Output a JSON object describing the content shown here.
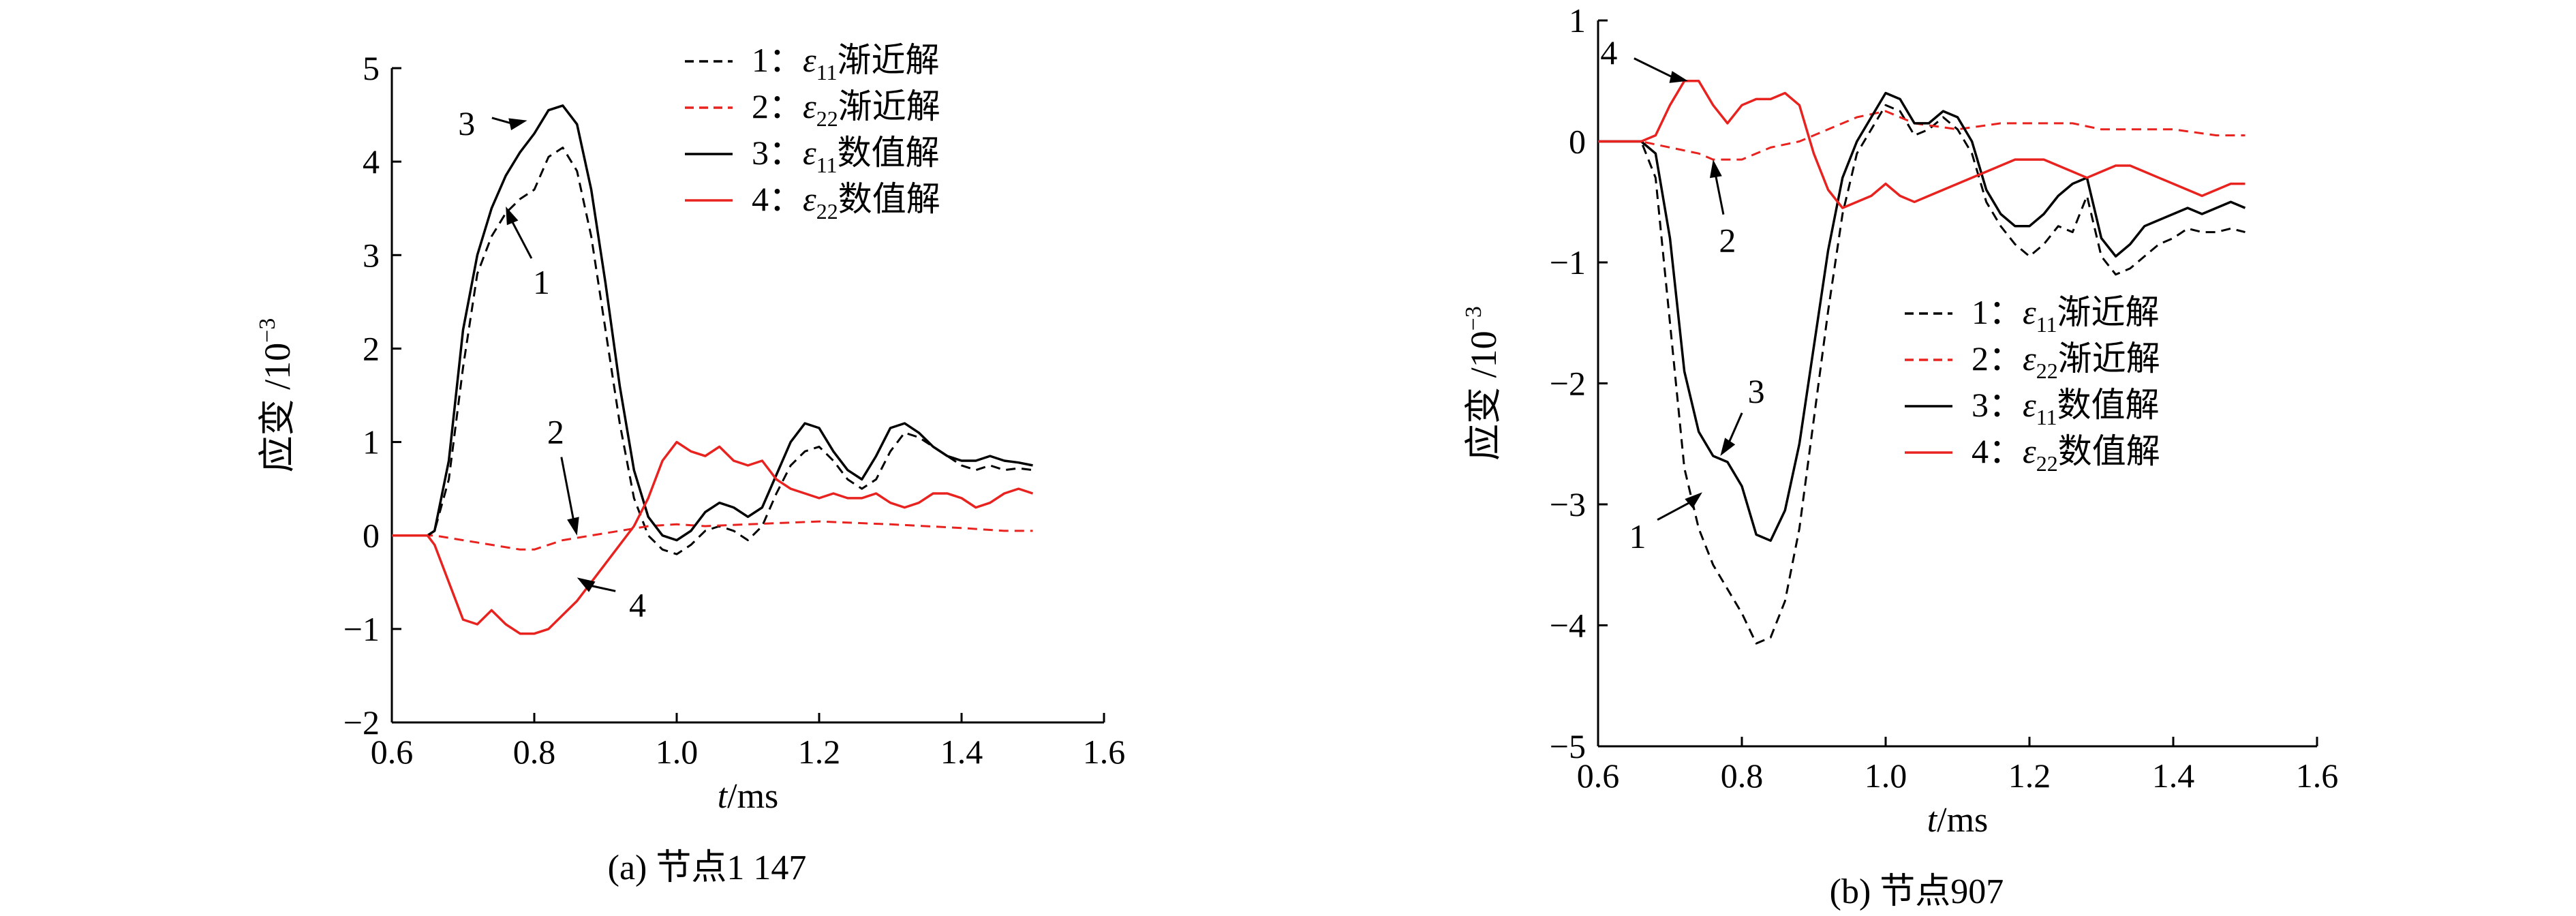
{
  "chart_data": [
    {
      "panel_label": "(a) 节点1 147",
      "type": "line",
      "xlabel_var": "t",
      "xlabel_unit": "/ms",
      "ylabel_main": "应变 /10",
      "ylabel_exp": "−3",
      "xlim": [
        0.6,
        1.6
      ],
      "ylim": [
        -2,
        5
      ],
      "xticks": [
        0.6,
        0.8,
        1.0,
        1.2,
        1.4,
        1.6
      ],
      "xtick_labels": [
        "0.6",
        "0.8",
        "1.0",
        "1.2",
        "1.4",
        "1.6"
      ],
      "yticks": [
        -2,
        -1,
        0,
        1,
        2,
        3,
        4,
        5
      ],
      "ytick_labels": [
        "−2",
        "−1",
        "0",
        "1",
        "2",
        "3",
        "4",
        "5"
      ],
      "legend": [
        {
          "num": "1：",
          "sym": "ε",
          "sub": "11",
          "text": "渐近解",
          "color": "#000000",
          "dash": true
        },
        {
          "num": "2：",
          "sym": "ε",
          "sub": "22",
          "text": "渐近解",
          "color": "#e8231f",
          "dash": true
        },
        {
          "num": "3：",
          "sym": "ε",
          "sub": "11",
          "text": "数值解",
          "color": "#000000",
          "dash": false
        },
        {
          "num": "4：",
          "sym": "ε",
          "sub": "22",
          "text": "数值解",
          "color": "#e8231f",
          "dash": false
        }
      ],
      "series": [
        {
          "color": "#000000",
          "dash": true,
          "x": [
            0.6,
            0.65,
            0.66,
            0.68,
            0.7,
            0.72,
            0.74,
            0.76,
            0.78,
            0.8,
            0.82,
            0.84,
            0.86,
            0.88,
            0.9,
            0.92,
            0.94,
            0.96,
            0.98,
            1.0,
            1.02,
            1.04,
            1.06,
            1.08,
            1.1,
            1.12,
            1.14,
            1.16,
            1.18,
            1.2,
            1.22,
            1.24,
            1.26,
            1.28,
            1.3,
            1.32,
            1.34,
            1.36,
            1.38,
            1.4,
            1.42,
            1.44,
            1.46,
            1.48,
            1.5
          ],
          "y": [
            0,
            0,
            0.05,
            0.6,
            1.8,
            2.8,
            3.2,
            3.45,
            3.6,
            3.7,
            4.05,
            4.15,
            3.9,
            3.2,
            2.2,
            1.2,
            0.4,
            0.0,
            -0.15,
            -0.2,
            -0.1,
            0.05,
            0.1,
            0.05,
            -0.05,
            0.1,
            0.45,
            0.75,
            0.9,
            0.95,
            0.8,
            0.6,
            0.5,
            0.6,
            0.9,
            1.1,
            1.05,
            0.95,
            0.85,
            0.75,
            0.7,
            0.75,
            0.7,
            0.72,
            0.7
          ]
        },
        {
          "color": "#e8231f",
          "dash": true,
          "x": [
            0.6,
            0.66,
            0.7,
            0.74,
            0.78,
            0.8,
            0.84,
            0.88,
            0.92,
            0.96,
            1.0,
            1.04,
            1.1,
            1.2,
            1.3,
            1.4,
            1.46,
            1.5
          ],
          "y": [
            0,
            0,
            -0.05,
            -0.1,
            -0.15,
            -0.15,
            -0.05,
            0.0,
            0.05,
            0.1,
            0.12,
            0.1,
            0.12,
            0.15,
            0.12,
            0.08,
            0.05,
            0.05
          ]
        },
        {
          "color": "#000000",
          "dash": false,
          "x": [
            0.6,
            0.65,
            0.66,
            0.68,
            0.7,
            0.72,
            0.74,
            0.76,
            0.78,
            0.8,
            0.82,
            0.84,
            0.86,
            0.88,
            0.9,
            0.92,
            0.94,
            0.96,
            0.98,
            1.0,
            1.02,
            1.04,
            1.06,
            1.08,
            1.1,
            1.12,
            1.14,
            1.16,
            1.18,
            1.2,
            1.22,
            1.24,
            1.26,
            1.28,
            1.3,
            1.32,
            1.34,
            1.36,
            1.38,
            1.4,
            1.42,
            1.44,
            1.46,
            1.48,
            1.5
          ],
          "y": [
            0,
            0,
            0.05,
            0.8,
            2.2,
            3.0,
            3.5,
            3.85,
            4.1,
            4.3,
            4.55,
            4.6,
            4.4,
            3.7,
            2.7,
            1.6,
            0.7,
            0.2,
            0.0,
            -0.05,
            0.05,
            0.25,
            0.35,
            0.3,
            0.2,
            0.3,
            0.65,
            1.0,
            1.2,
            1.15,
            0.9,
            0.7,
            0.6,
            0.85,
            1.15,
            1.2,
            1.1,
            0.95,
            0.85,
            0.8,
            0.8,
            0.85,
            0.8,
            0.78,
            0.75
          ]
        },
        {
          "color": "#e8231f",
          "dash": false,
          "x": [
            0.6,
            0.65,
            0.66,
            0.68,
            0.7,
            0.72,
            0.74,
            0.76,
            0.78,
            0.8,
            0.82,
            0.84,
            0.86,
            0.88,
            0.9,
            0.92,
            0.94,
            0.96,
            0.98,
            1.0,
            1.02,
            1.04,
            1.06,
            1.08,
            1.1,
            1.12,
            1.14,
            1.16,
            1.18,
            1.2,
            1.22,
            1.24,
            1.26,
            1.28,
            1.3,
            1.32,
            1.34,
            1.36,
            1.38,
            1.4,
            1.42,
            1.44,
            1.46,
            1.48,
            1.5
          ],
          "y": [
            0,
            0,
            -0.1,
            -0.5,
            -0.9,
            -0.95,
            -0.8,
            -0.95,
            -1.05,
            -1.05,
            -1.0,
            -0.85,
            -0.7,
            -0.5,
            -0.3,
            -0.1,
            0.1,
            0.4,
            0.8,
            1.0,
            0.9,
            0.85,
            0.95,
            0.8,
            0.75,
            0.8,
            0.6,
            0.5,
            0.45,
            0.4,
            0.45,
            0.4,
            0.4,
            0.45,
            0.35,
            0.3,
            0.35,
            0.45,
            0.45,
            0.4,
            0.3,
            0.35,
            0.45,
            0.5,
            0.45
          ]
        }
      ],
      "annotations": [
        {
          "label": "1",
          "tx": 0.81,
          "ty": 2.6,
          "ax": 0.76,
          "ay": 3.52
        },
        {
          "label": "3",
          "tx": 0.705,
          "ty": 4.3,
          "ax": 0.79,
          "ay": 4.44
        },
        {
          "label": "2",
          "tx": 0.83,
          "ty": 1.0,
          "ax": 0.86,
          "ay": 0.0
        },
        {
          "label": "4",
          "tx": 0.945,
          "ty": -0.85,
          "ax": 0.86,
          "ay": -0.45
        }
      ]
    },
    {
      "panel_label": "(b) 节点907",
      "type": "line",
      "xlabel_var": "t",
      "xlabel_unit": "/ms",
      "ylabel_main": "应变 /10",
      "ylabel_exp": "−3",
      "xlim": [
        0.6,
        1.6
      ],
      "ylim": [
        -5,
        1
      ],
      "xticks": [
        0.6,
        0.8,
        1.0,
        1.2,
        1.4,
        1.6
      ],
      "xtick_labels": [
        "0.6",
        "0.8",
        "1.0",
        "1.2",
        "1.4",
        "1.6"
      ],
      "yticks": [
        -5,
        -4,
        -3,
        -2,
        -1,
        0,
        1
      ],
      "ytick_labels": [
        "−5",
        "−4",
        "−3",
        "−2",
        "−1",
        "0",
        "1"
      ],
      "legend": [
        {
          "num": "1：",
          "sym": "ε",
          "sub": "11",
          "text": "渐近解",
          "color": "#000000",
          "dash": true
        },
        {
          "num": "2：",
          "sym": "ε",
          "sub": "22",
          "text": "渐近解",
          "color": "#e8231f",
          "dash": true
        },
        {
          "num": "3：",
          "sym": "ε",
          "sub": "11",
          "text": "数值解",
          "color": "#000000",
          "dash": false
        },
        {
          "num": "4：",
          "sym": "ε",
          "sub": "22",
          "text": "数值解",
          "color": "#e8231f",
          "dash": false
        }
      ],
      "series": [
        {
          "color": "#000000",
          "dash": true,
          "x": [
            0.6,
            0.65,
            0.66,
            0.68,
            0.7,
            0.72,
            0.74,
            0.76,
            0.78,
            0.8,
            0.82,
            0.84,
            0.86,
            0.88,
            0.9,
            0.92,
            0.94,
            0.96,
            0.98,
            1.0,
            1.02,
            1.04,
            1.06,
            1.08,
            1.1,
            1.12,
            1.14,
            1.16,
            1.18,
            1.2,
            1.22,
            1.24,
            1.26,
            1.28,
            1.3,
            1.32,
            1.34,
            1.36,
            1.38,
            1.4,
            1.42,
            1.44,
            1.46,
            1.48,
            1.5
          ],
          "y": [
            0,
            0,
            0,
            -0.3,
            -1.5,
            -2.7,
            -3.2,
            -3.5,
            -3.7,
            -3.9,
            -4.15,
            -4.1,
            -3.8,
            -3.2,
            -2.3,
            -1.4,
            -0.6,
            -0.1,
            0.1,
            0.3,
            0.25,
            0.05,
            0.1,
            0.2,
            0.1,
            -0.1,
            -0.5,
            -0.7,
            -0.85,
            -0.95,
            -0.85,
            -0.7,
            -0.75,
            -0.45,
            -0.95,
            -1.1,
            -1.05,
            -0.95,
            -0.85,
            -0.8,
            -0.72,
            -0.75,
            -0.75,
            -0.72,
            -0.75
          ]
        },
        {
          "color": "#e8231f",
          "dash": true,
          "x": [
            0.6,
            0.66,
            0.7,
            0.74,
            0.76,
            0.8,
            0.84,
            0.88,
            0.92,
            0.96,
            1.0,
            1.04,
            1.1,
            1.16,
            1.2,
            1.26,
            1.3,
            1.36,
            1.4,
            1.46,
            1.5
          ],
          "y": [
            0,
            0,
            -0.05,
            -0.1,
            -0.15,
            -0.15,
            -0.05,
            0.0,
            0.1,
            0.2,
            0.25,
            0.15,
            0.1,
            0.15,
            0.15,
            0.15,
            0.1,
            0.1,
            0.1,
            0.05,
            0.05
          ]
        },
        {
          "color": "#000000",
          "dash": false,
          "x": [
            0.6,
            0.65,
            0.66,
            0.68,
            0.7,
            0.72,
            0.74,
            0.76,
            0.78,
            0.8,
            0.82,
            0.84,
            0.86,
            0.88,
            0.9,
            0.92,
            0.94,
            0.96,
            0.98,
            1.0,
            1.02,
            1.04,
            1.06,
            1.08,
            1.1,
            1.12,
            1.14,
            1.16,
            1.18,
            1.2,
            1.22,
            1.24,
            1.26,
            1.28,
            1.3,
            1.32,
            1.34,
            1.36,
            1.38,
            1.4,
            1.42,
            1.44,
            1.46,
            1.48,
            1.5
          ],
          "y": [
            0,
            0,
            0,
            -0.1,
            -0.8,
            -1.9,
            -2.4,
            -2.6,
            -2.65,
            -2.85,
            -3.25,
            -3.3,
            -3.05,
            -2.5,
            -1.7,
            -0.9,
            -0.3,
            0.0,
            0.2,
            0.4,
            0.35,
            0.15,
            0.15,
            0.25,
            0.2,
            0.0,
            -0.4,
            -0.6,
            -0.7,
            -0.7,
            -0.6,
            -0.45,
            -0.35,
            -0.3,
            -0.8,
            -0.95,
            -0.85,
            -0.7,
            -0.65,
            -0.6,
            -0.55,
            -0.6,
            -0.55,
            -0.5,
            -0.55
          ]
        },
        {
          "color": "#e8231f",
          "dash": false,
          "x": [
            0.6,
            0.66,
            0.68,
            0.7,
            0.72,
            0.74,
            0.76,
            0.78,
            0.8,
            0.82,
            0.84,
            0.86,
            0.88,
            0.9,
            0.92,
            0.94,
            0.96,
            0.98,
            1.0,
            1.02,
            1.04,
            1.06,
            1.08,
            1.1,
            1.12,
            1.14,
            1.16,
            1.18,
            1.2,
            1.22,
            1.24,
            1.26,
            1.28,
            1.3,
            1.32,
            1.34,
            1.36,
            1.38,
            1.4,
            1.42,
            1.44,
            1.46,
            1.48,
            1.5
          ],
          "y": [
            0,
            0,
            0.05,
            0.3,
            0.5,
            0.5,
            0.3,
            0.15,
            0.3,
            0.35,
            0.35,
            0.4,
            0.3,
            -0.1,
            -0.4,
            -0.55,
            -0.5,
            -0.45,
            -0.35,
            -0.45,
            -0.5,
            -0.45,
            -0.4,
            -0.35,
            -0.3,
            -0.25,
            -0.2,
            -0.15,
            -0.15,
            -0.15,
            -0.2,
            -0.25,
            -0.3,
            -0.25,
            -0.2,
            -0.2,
            -0.25,
            -0.3,
            -0.35,
            -0.4,
            -0.45,
            -0.4,
            -0.35,
            -0.35
          ]
        }
      ],
      "annotations": [
        {
          "label": "4",
          "tx": 0.615,
          "ty": 0.65,
          "ax": 0.725,
          "ay": 0.5
        },
        {
          "label": "2",
          "tx": 0.78,
          "ty": -0.9,
          "ax": 0.76,
          "ay": -0.15
        },
        {
          "label": "3",
          "tx": 0.82,
          "ty": -2.15,
          "ax": 0.77,
          "ay": -2.6
        },
        {
          "label": "1",
          "tx": 0.655,
          "ty": -3.35,
          "ax": 0.745,
          "ay": -2.9
        }
      ]
    }
  ]
}
